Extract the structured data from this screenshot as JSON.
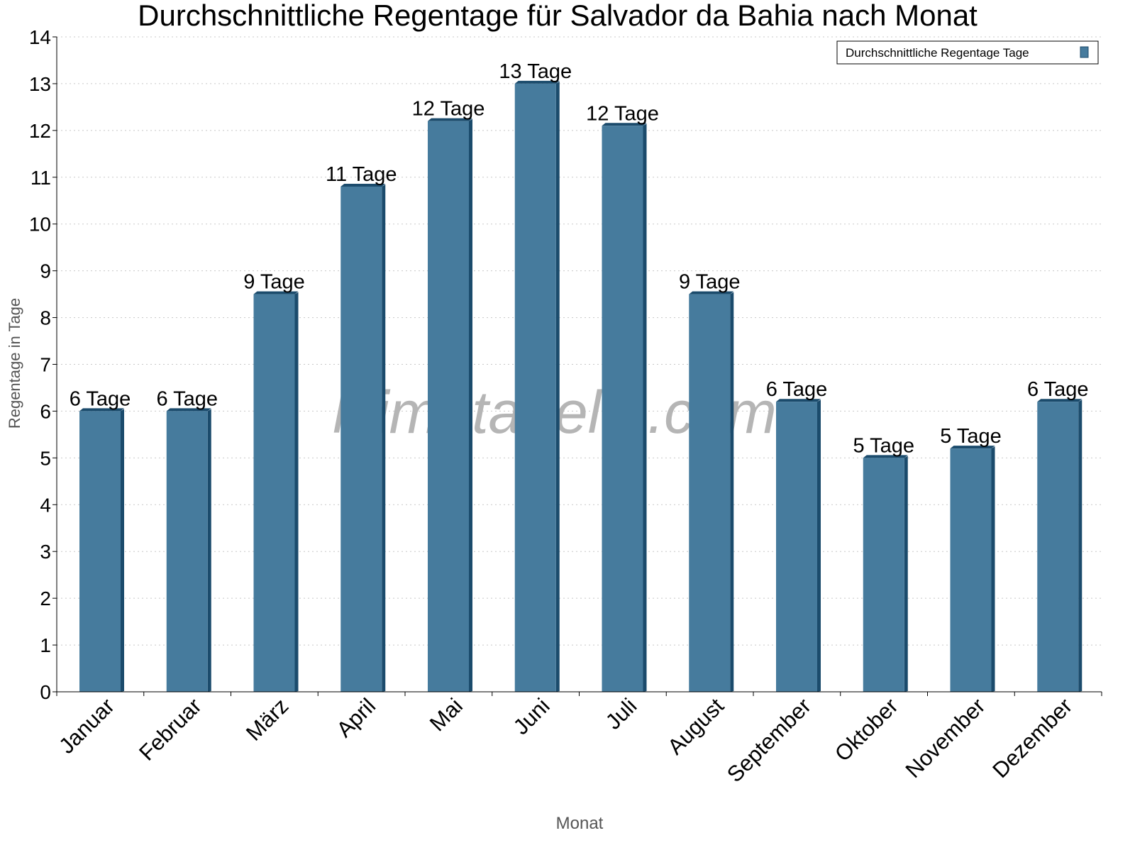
{
  "chart_data": {
    "type": "bar",
    "title": "Durchschnittliche Regentage für Salvador da Bahia nach Monat",
    "xlabel": "Monat",
    "ylabel": "Regentage in Tage",
    "ylim": [
      0,
      14
    ],
    "yticks": [
      0,
      1,
      2,
      3,
      4,
      5,
      6,
      7,
      8,
      9,
      10,
      11,
      12,
      13,
      14
    ],
    "grid": true,
    "legend_position": "top-right",
    "watermark": "klimatabelle.com",
    "categories": [
      "Januar",
      "Februar",
      "März",
      "April",
      "Mai",
      "Juni",
      "Juli",
      "August",
      "September",
      "Oktober",
      "November",
      "Dezember"
    ],
    "series": [
      {
        "name": "Durchschnittliche Regentage Tage",
        "color": "#467b9d",
        "values": [
          6.0,
          6.0,
          8.5,
          10.8,
          12.2,
          13.0,
          12.1,
          8.5,
          6.2,
          5.0,
          5.2,
          6.2
        ],
        "data_labels": [
          "6 Tage",
          "6 Tage",
          "9 Tage",
          "11 Tage",
          "12 Tage",
          "13 Tage",
          "12 Tage",
          "9 Tage",
          "6 Tage",
          "5 Tage",
          "5 Tage",
          "6 Tage"
        ]
      }
    ]
  }
}
